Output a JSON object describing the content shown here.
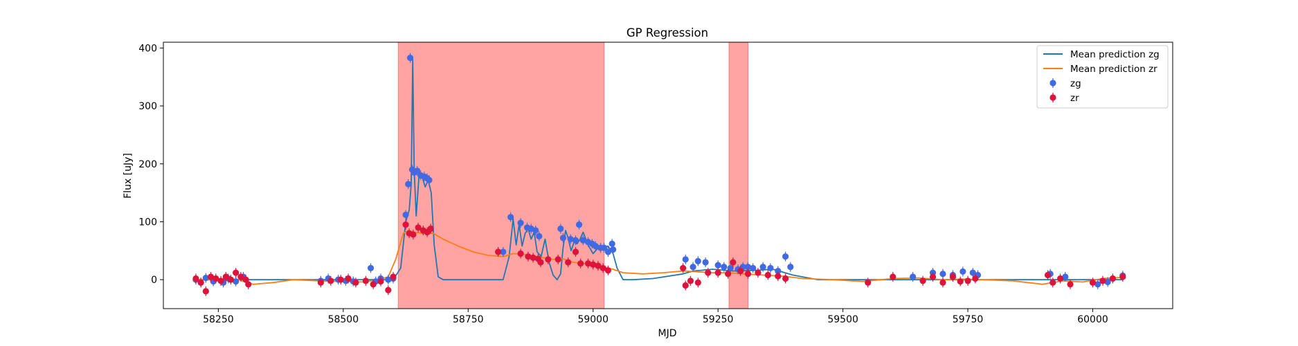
{
  "chart_data": {
    "type": "line",
    "title": "GP Regression",
    "xlabel": "MJD",
    "ylabel": "Flux [uJy]",
    "xlim": [
      58140,
      60160
    ],
    "ylim": [
      -50,
      410
    ],
    "xticks": [
      58250,
      58500,
      58750,
      59000,
      59250,
      59500,
      59750,
      60000
    ],
    "yticks": [
      0,
      100,
      200,
      300,
      400
    ],
    "grid": false,
    "legend_position": "top-right",
    "shaded_regions": [
      {
        "x0": 58610,
        "x1": 59022,
        "color": "#ff6666"
      },
      {
        "x0": 59272,
        "x1": 59310,
        "color": "#ff6666"
      }
    ],
    "series": [
      {
        "name": "Mean prediction zg",
        "kind": "line",
        "color": "#1f77b4",
        "x": [
          58210,
          58250,
          58300,
          58350,
          58400,
          58450,
          58500,
          58550,
          58580,
          58600,
          58615,
          58625,
          58632,
          58636,
          58639,
          58642,
          58646,
          58652,
          58658,
          58664,
          58670,
          58676,
          58682,
          58690,
          58700,
          58720,
          58760,
          58800,
          58820,
          58832,
          58840,
          58846,
          58852,
          58858,
          58864,
          58870,
          58876,
          58882,
          58888,
          58896,
          58904,
          58912,
          58920,
          58928,
          58935,
          58940,
          58945,
          58950,
          58956,
          58962,
          58968,
          58974,
          58980,
          58990,
          59000,
          59010,
          59020,
          59030,
          59040,
          59048,
          59060,
          59080,
          59120,
          59180,
          59200,
          59240,
          59280,
          59320,
          59360,
          59400,
          59450,
          59550,
          59650,
          59700,
          59750,
          59800,
          59900,
          59960,
          60000,
          60060
        ],
        "values": [
          0,
          0,
          0,
          0,
          0,
          0,
          0,
          0,
          0,
          0,
          20,
          100,
          120,
          165,
          380,
          190,
          110,
          185,
          178,
          160,
          172,
          150,
          60,
          5,
          0,
          0,
          0,
          0,
          0,
          40,
          105,
          60,
          95,
          58,
          80,
          88,
          70,
          82,
          48,
          40,
          70,
          30,
          8,
          0,
          10,
          55,
          85,
          72,
          50,
          65,
          62,
          70,
          82,
          60,
          45,
          55,
          56,
          58,
          45,
          20,
          0,
          0,
          2,
          10,
          15,
          18,
          15,
          16,
          18,
          8,
          0,
          0,
          0,
          0,
          0,
          0,
          0,
          0,
          0,
          0
        ]
      },
      {
        "name": "Mean prediction zr",
        "kind": "line",
        "color": "#ff7f0e",
        "x": [
          58210,
          58250,
          58290,
          58320,
          58360,
          58400,
          58450,
          58500,
          58540,
          58570,
          58590,
          58605,
          58620,
          58630,
          58640,
          58660,
          58680,
          58700,
          58730,
          58760,
          58790,
          58820,
          58840,
          58860,
          58880,
          58900,
          58920,
          58940,
          58960,
          58980,
          59000,
          59020,
          59040,
          59060,
          59100,
          59140,
          59180,
          59200,
          59240,
          59270,
          59300,
          59340,
          59380,
          59420,
          59480,
          59540,
          59600,
          59650,
          59700,
          59740,
          59780,
          59840,
          59900,
          59940,
          59980,
          60020,
          60060
        ],
        "values": [
          0,
          0,
          0,
          -8,
          -5,
          0,
          -2,
          -3,
          -4,
          0,
          5,
          35,
          80,
          85,
          82,
          80,
          80,
          70,
          58,
          48,
          42,
          40,
          45,
          44,
          40,
          38,
          35,
          36,
          30,
          28,
          26,
          22,
          18,
          12,
          10,
          12,
          15,
          14,
          12,
          12,
          10,
          8,
          6,
          2,
          0,
          -3,
          2,
          3,
          0,
          1,
          0,
          -2,
          -8,
          -2,
          -4,
          2,
          4
        ]
      },
      {
        "name": "zg",
        "kind": "points",
        "color": "#4169e1",
        "x": [
          58205,
          58215,
          58225,
          58240,
          58260,
          58270,
          58285,
          58300,
          58455,
          58470,
          58490,
          58505,
          58520,
          58555,
          58565,
          58575,
          58590,
          58600,
          58625,
          58630,
          58634,
          58638,
          58642,
          58648,
          58655,
          58662,
          58668,
          58672,
          58820,
          58835,
          58855,
          58868,
          58876,
          58885,
          58892,
          58935,
          58940,
          58955,
          58965,
          58972,
          58980,
          58990,
          58998,
          59005,
          59015,
          59022,
          59030,
          59038,
          59040,
          59185,
          59200,
          59210,
          59225,
          59250,
          59262,
          59275,
          59290,
          59300,
          59310,
          59320,
          59340,
          59355,
          59370,
          59385,
          59395,
          59640,
          59680,
          59700,
          59720,
          59740,
          59760,
          59770,
          59915,
          59945,
          60010,
          60030,
          60060
        ],
        "values": [
          0,
          -5,
          3,
          -3,
          -5,
          2,
          -3,
          5,
          -2,
          2,
          0,
          -2,
          -3,
          20,
          -3,
          2,
          0,
          2,
          112,
          165,
          383,
          190,
          185,
          188,
          180,
          178,
          175,
          172,
          48,
          108,
          98,
          90,
          88,
          85,
          75,
          88,
          72,
          70,
          68,
          95,
          68,
          65,
          62,
          58,
          55,
          55,
          48,
          62,
          52,
          35,
          22,
          32,
          30,
          25,
          22,
          20,
          18,
          22,
          22,
          20,
          22,
          20,
          15,
          40,
          22,
          5,
          12,
          10,
          8,
          14,
          12,
          8,
          10,
          5,
          -8,
          -4,
          7
        ]
      },
      {
        "name": "zr",
        "kind": "points",
        "color": "#dc143c",
        "x": [
          58205,
          58215,
          58225,
          58235,
          58245,
          58255,
          58265,
          58275,
          58285,
          58295,
          58305,
          58310,
          58455,
          58475,
          58495,
          58510,
          58525,
          58545,
          58560,
          58575,
          58590,
          58600,
          58625,
          58632,
          58640,
          58650,
          58660,
          58668,
          58675,
          58810,
          58855,
          58870,
          58880,
          58890,
          58895,
          58910,
          58930,
          58950,
          58965,
          58975,
          58990,
          59000,
          59010,
          59020,
          59030,
          59180,
          59185,
          59195,
          59210,
          59230,
          59250,
          59270,
          59280,
          59295,
          59310,
          59330,
          59350,
          59370,
          59385,
          59550,
          59600,
          59660,
          59680,
          59700,
          59720,
          59735,
          59750,
          59765,
          59910,
          59920,
          59935,
          59955,
          60000,
          60020,
          60040,
          60060
        ],
        "values": [
          2,
          -5,
          -20,
          5,
          2,
          -2,
          5,
          0,
          12,
          5,
          0,
          -8,
          -5,
          -2,
          0,
          2,
          -5,
          -2,
          -8,
          -3,
          -18,
          5,
          95,
          80,
          78,
          90,
          85,
          82,
          88,
          48,
          45,
          40,
          38,
          36,
          30,
          35,
          35,
          30,
          48,
          28,
          28,
          26,
          24,
          20,
          16,
          20,
          -10,
          -2,
          -5,
          12,
          12,
          10,
          30,
          15,
          10,
          12,
          8,
          6,
          2,
          -5,
          5,
          -2,
          5,
          -5,
          5,
          -3,
          -2,
          2,
          8,
          -5,
          2,
          -8,
          -5,
          -2,
          2,
          5
        ]
      }
    ]
  }
}
